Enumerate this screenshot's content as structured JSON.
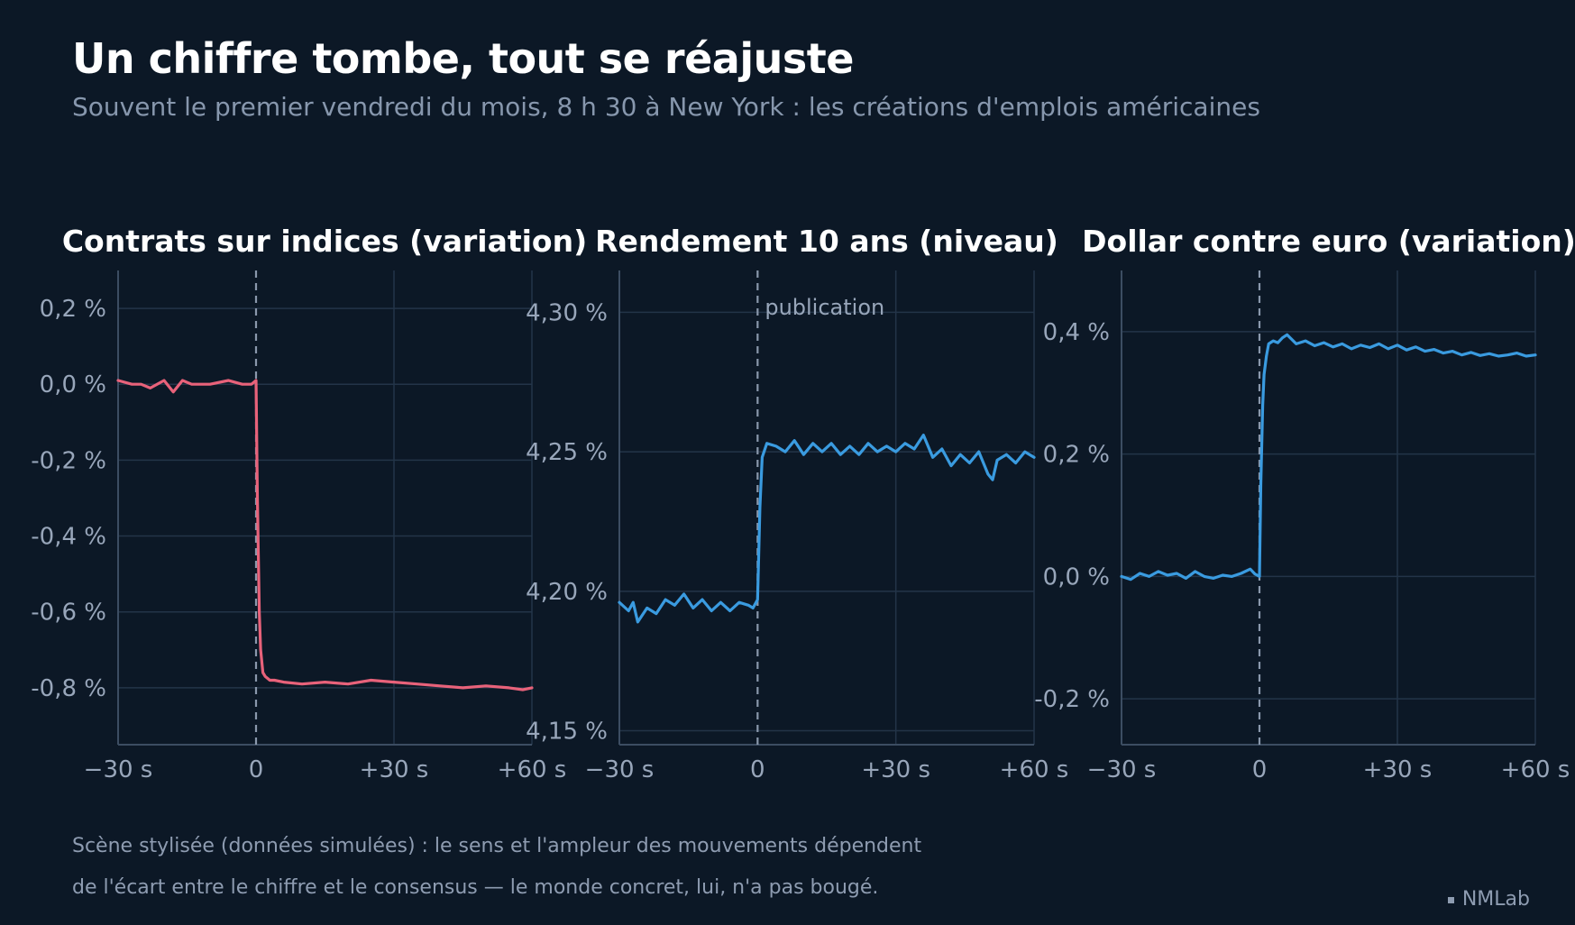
{
  "title": "Un chiffre tombe, tout se réajuste",
  "subtitle": "Souvent le premier vendredi du mois, 8 h 30 à New York : les créations d'emplois américaines",
  "note_line1": "Scène stylisée (données simulées) : le sens et l'ampleur des mouvements dépendent",
  "note_line2": "de l'écart entre le chiffre et le consensus — le monde concret, lui, n'a pas bougé.",
  "credit": "NMLab",
  "colors": {
    "background": "#0c1826",
    "grid": "#233448",
    "axis": "#3c4d62",
    "tick_text": "#98a6ba",
    "marker": "#8a98ac",
    "red_series": "#e8627a",
    "blue_series": "#3a9be0"
  },
  "chart_data": [
    {
      "type": "line",
      "title": "Contrats sur indices (variation)",
      "xlabel": "",
      "ylabel": "",
      "xlim": [
        -30,
        60
      ],
      "ylim": [
        -0.95,
        0.3
      ],
      "xticks": [
        -30,
        0,
        30,
        60
      ],
      "xtick_labels": [
        "−30 s",
        "0",
        "+30 s",
        "+60 s"
      ],
      "yticks": [
        0.2,
        0.0,
        -0.2,
        -0.4,
        -0.6,
        -0.8
      ],
      "ytick_labels": [
        "0,2 %",
        "0,0 %",
        "-0,2 %",
        "-0,4 %",
        "-0,6 %",
        "-0,8 %"
      ],
      "grid": true,
      "event_marker_x": 0,
      "series": [
        {
          "color": "#e8627a",
          "x": [
            -30,
            -27,
            -25,
            -23,
            -20,
            -18,
            -16,
            -14,
            -10,
            -6,
            -3,
            -1,
            0,
            0.3,
            0.7,
            1,
            1.5,
            2,
            3,
            4,
            6,
            10,
            15,
            20,
            25,
            30,
            35,
            40,
            45,
            50,
            55,
            58,
            60
          ],
          "y": [
            0.01,
            0.0,
            0.0,
            -0.01,
            0.01,
            -0.02,
            0.01,
            0.0,
            0.0,
            0.01,
            0.0,
            0.0,
            0.01,
            -0.3,
            -0.6,
            -0.7,
            -0.76,
            -0.77,
            -0.78,
            -0.78,
            -0.785,
            -0.79,
            -0.785,
            -0.79,
            -0.78,
            -0.785,
            -0.79,
            -0.795,
            -0.8,
            -0.795,
            -0.8,
            -0.805,
            -0.8
          ]
        }
      ]
    },
    {
      "type": "line",
      "title": "Rendement 10 ans (niveau)",
      "xlabel": "",
      "ylabel": "",
      "xlim": [
        -30,
        60
      ],
      "ylim": [
        4.145,
        4.315
      ],
      "xticks": [
        -30,
        0,
        30,
        60
      ],
      "xtick_labels": [
        "−30 s",
        "0",
        "+30 s",
        "+60 s"
      ],
      "yticks": [
        4.3,
        4.25,
        4.2,
        4.15
      ],
      "ytick_labels": [
        "4,30 %",
        "4,25 %",
        "4,20 %",
        "4,15 %"
      ],
      "grid": true,
      "event_marker_x": 0,
      "annotation": "publication",
      "series": [
        {
          "color": "#3a9be0",
          "x": [
            -30,
            -28,
            -27,
            -26,
            -24,
            -22,
            -20,
            -18,
            -16,
            -14,
            -12,
            -10,
            -8,
            -6,
            -4,
            -2,
            -1,
            0,
            0.5,
            1,
            2,
            4,
            6,
            8,
            10,
            12,
            14,
            16,
            18,
            20,
            22,
            24,
            26,
            28,
            30,
            32,
            34,
            36,
            38,
            40,
            42,
            44,
            46,
            48,
            50,
            51,
            52,
            54,
            56,
            58,
            60
          ],
          "y": [
            4.196,
            4.193,
            4.196,
            4.189,
            4.194,
            4.192,
            4.197,
            4.195,
            4.199,
            4.194,
            4.197,
            4.193,
            4.196,
            4.193,
            4.196,
            4.195,
            4.194,
            4.197,
            4.23,
            4.248,
            4.253,
            4.252,
            4.25,
            4.254,
            4.249,
            4.253,
            4.25,
            4.253,
            4.249,
            4.252,
            4.249,
            4.253,
            4.25,
            4.252,
            4.25,
            4.253,
            4.251,
            4.256,
            4.248,
            4.251,
            4.245,
            4.249,
            4.246,
            4.25,
            4.242,
            4.24,
            4.247,
            4.249,
            4.246,
            4.25,
            4.248
          ]
        }
      ]
    },
    {
      "type": "line",
      "title": "Dollar contre euro (variation)",
      "xlabel": "",
      "ylabel": "",
      "xlim": [
        -30,
        60
      ],
      "ylim": [
        -0.275,
        0.5
      ],
      "xticks": [
        -30,
        0,
        30,
        60
      ],
      "xtick_labels": [
        "−30 s",
        "0",
        "+30 s",
        "+60 s"
      ],
      "yticks": [
        0.4,
        0.2,
        0.0,
        -0.2
      ],
      "ytick_labels": [
        "0,4 %",
        "0,2 %",
        "0,0 %",
        "-0,2 %"
      ],
      "grid": true,
      "event_marker_x": 0,
      "series": [
        {
          "color": "#3a9be0",
          "x": [
            -30,
            -28,
            -26,
            -24,
            -22,
            -20,
            -18,
            -16,
            -14,
            -12,
            -10,
            -8,
            -6,
            -4,
            -2,
            -1,
            0,
            0.3,
            0.7,
            1,
            1.5,
            2,
            3,
            4,
            5,
            6,
            8,
            10,
            12,
            14,
            16,
            18,
            20,
            22,
            24,
            26,
            28,
            30,
            32,
            34,
            36,
            38,
            40,
            42,
            44,
            46,
            48,
            50,
            52,
            54,
            56,
            58,
            60
          ],
          "y": [
            0.0,
            -0.005,
            0.005,
            0.0,
            0.008,
            0.002,
            0.005,
            -0.003,
            0.008,
            0.0,
            -0.003,
            0.002,
            0.0,
            0.005,
            0.012,
            0.004,
            0.0,
            0.15,
            0.28,
            0.33,
            0.36,
            0.38,
            0.385,
            0.382,
            0.39,
            0.395,
            0.38,
            0.385,
            0.377,
            0.382,
            0.375,
            0.38,
            0.372,
            0.378,
            0.374,
            0.38,
            0.372,
            0.378,
            0.37,
            0.375,
            0.368,
            0.371,
            0.365,
            0.368,
            0.362,
            0.366,
            0.361,
            0.364,
            0.36,
            0.362,
            0.365,
            0.36,
            0.362
          ]
        }
      ]
    }
  ]
}
